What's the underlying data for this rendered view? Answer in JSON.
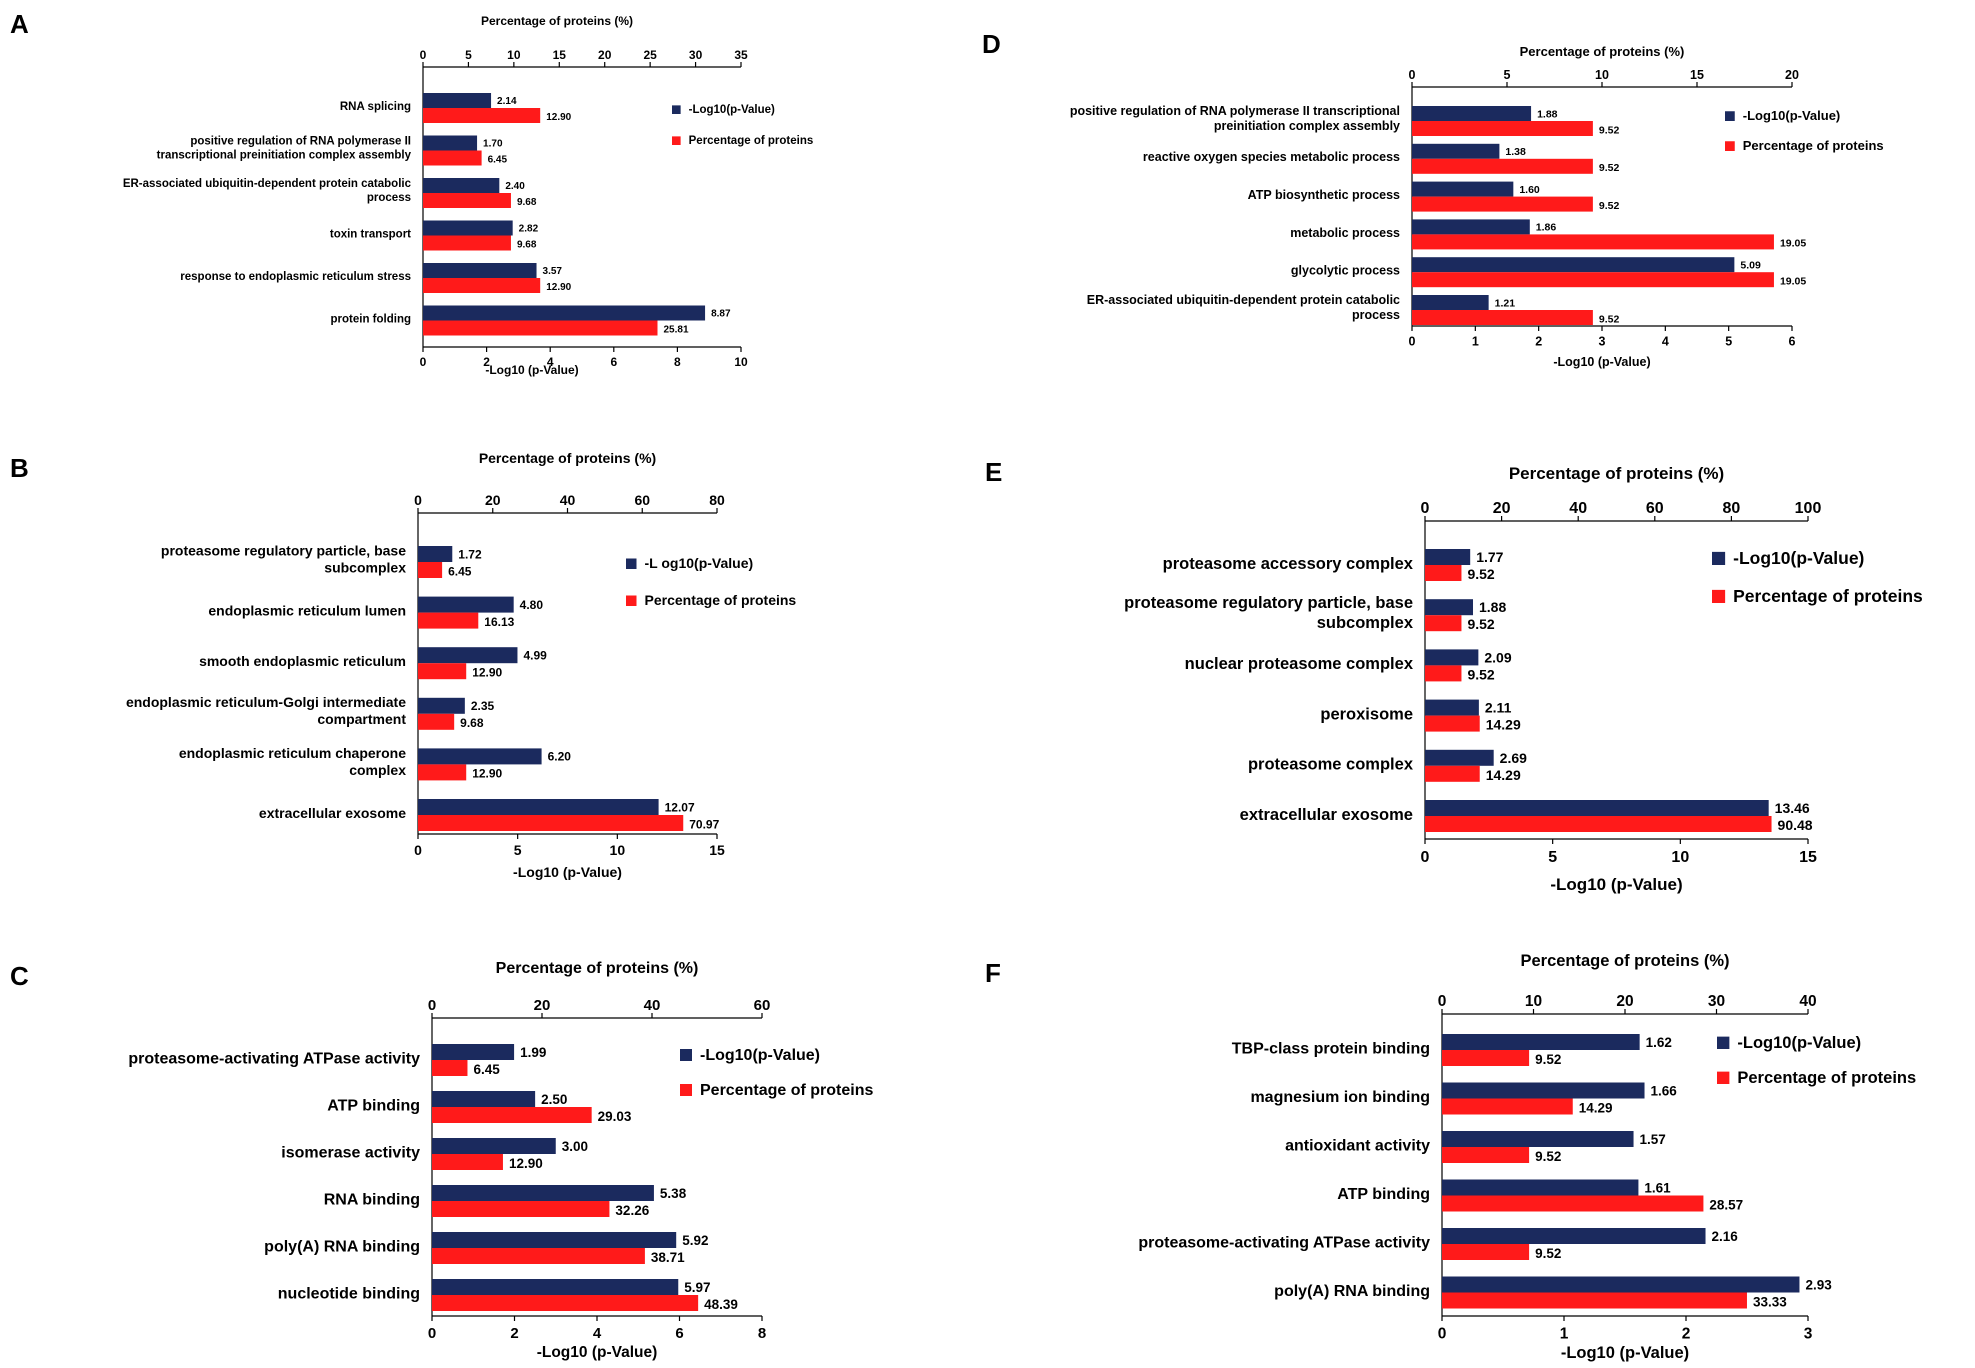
{
  "figure": {
    "colors": {
      "neglog": "#1b2a5e",
      "pct": "#ff1a1a",
      "axis": "#000000"
    },
    "legend_labels": [
      "-Log10(p-Value)",
      "Percentage of proteins"
    ]
  },
  "chart_data": [
    {
      "panel": "A",
      "type": "bar",
      "orientation": "horizontal",
      "title": "Percentage of proteins (%)",
      "xlabel": "-Log10 (p-Value)",
      "bottom_axis": {
        "range": [
          0,
          10
        ],
        "ticks": [
          0,
          2,
          4,
          6,
          8,
          10
        ]
      },
      "top_axis": {
        "range": [
          0,
          35
        ],
        "ticks": [
          0,
          5,
          10,
          15,
          20,
          25,
          30,
          35
        ]
      },
      "categories": [
        [
          "RNA splicing"
        ],
        [
          "positive regulation of RNA polymerase II",
          "transcriptional preinitiation complex assembly"
        ],
        [
          "ER-associated ubiquitin-dependent protein catabolic",
          "process"
        ],
        [
          "toxin transport"
        ],
        [
          "response to endoplasmic reticulum stress"
        ],
        [
          "protein folding"
        ]
      ],
      "series": [
        {
          "name": "-Log10(p-Value)",
          "axis": "bottom",
          "values": [
            2.14,
            1.7,
            2.4,
            2.82,
            3.57,
            8.87
          ],
          "labels": [
            "2.14",
            "1.70",
            "2.40",
            "2.82",
            "3.57",
            "8.87"
          ]
        },
        {
          "name": "Percentage of proteins",
          "axis": "top",
          "values": [
            12.9,
            6.45,
            9.68,
            9.68,
            12.9,
            25.81
          ],
          "labels": [
            "12.90",
            "6.45",
            "9.68",
            "9.68",
            "12.90",
            "25.81"
          ]
        }
      ],
      "legend": [
        "-Log10(p-Value)",
        "Percentage of proteins"
      ]
    },
    {
      "panel": "B",
      "type": "bar",
      "orientation": "horizontal",
      "title": "Percentage of proteins (%)",
      "xlabel": "-Log10 (p-Value)",
      "bottom_axis": {
        "range": [
          0,
          15
        ],
        "ticks": [
          0,
          5,
          10,
          15
        ]
      },
      "top_axis": {
        "range": [
          0,
          80
        ],
        "ticks": [
          0,
          20,
          40,
          60,
          80
        ]
      },
      "categories": [
        [
          "proteasome regulatory particle, base",
          "subcomplex"
        ],
        [
          "endoplasmic reticulum lumen"
        ],
        [
          "smooth endoplasmic reticulum"
        ],
        [
          "endoplasmic reticulum-Golgi intermediate",
          "compartment"
        ],
        [
          "endoplasmic reticulum chaperone",
          "complex"
        ],
        [
          "extracellular exosome"
        ]
      ],
      "series": [
        {
          "name": "-Log10(p-Value)",
          "axis": "bottom",
          "values": [
            1.72,
            4.8,
            4.99,
            2.35,
            6.2,
            12.07
          ],
          "labels": [
            "1.72",
            "4.80",
            "4.99",
            "2.35",
            "6.20",
            "12.07"
          ]
        },
        {
          "name": "Percentage of proteins",
          "axis": "top",
          "values": [
            6.45,
            16.13,
            12.9,
            9.68,
            12.9,
            70.97
          ],
          "labels": [
            "6.45",
            "16.13",
            "12.90",
            "9.68",
            "12.90",
            "70.97"
          ]
        }
      ],
      "legend": [
        "-L og10(p-Value)",
        "Percentage of proteins"
      ]
    },
    {
      "panel": "C",
      "type": "bar",
      "orientation": "horizontal",
      "title": "Percentage of proteins (%)",
      "xlabel": "-Log10 (p-Value)",
      "bottom_axis": {
        "range": [
          0,
          8
        ],
        "ticks": [
          0,
          2,
          4,
          6,
          8
        ]
      },
      "top_axis": {
        "range": [
          0,
          60
        ],
        "ticks": [
          0,
          20,
          40,
          60
        ]
      },
      "categories": [
        [
          "proteasome-activating ATPase activity"
        ],
        [
          "ATP binding"
        ],
        [
          "isomerase activity"
        ],
        [
          "RNA binding"
        ],
        [
          "poly(A) RNA binding"
        ],
        [
          "nucleotide binding"
        ]
      ],
      "series": [
        {
          "name": "-Log10(p-Value)",
          "axis": "bottom",
          "values": [
            1.99,
            2.5,
            3.0,
            5.38,
            5.92,
            5.97
          ],
          "labels": [
            "1.99",
            "2.50",
            "3.00",
            "5.38",
            "5.92",
            "5.97"
          ]
        },
        {
          "name": "Percentage of proteins",
          "axis": "top",
          "values": [
            6.45,
            29.03,
            12.9,
            32.26,
            38.71,
            48.39
          ],
          "labels": [
            "6.45",
            "29.03",
            "12.90",
            "32.26",
            "38.71",
            "48.39"
          ]
        }
      ],
      "legend": [
        "-Log10(p-Value)",
        "Percentage of proteins"
      ]
    },
    {
      "panel": "D",
      "type": "bar",
      "orientation": "horizontal",
      "title": "Percentage of proteins (%)",
      "xlabel": "-Log10 (p-Value)",
      "bottom_axis": {
        "range": [
          0,
          6
        ],
        "ticks": [
          0,
          1,
          2,
          3,
          4,
          5,
          6
        ]
      },
      "top_axis": {
        "range": [
          0,
          20
        ],
        "ticks": [
          0,
          5,
          10,
          15,
          20
        ]
      },
      "categories": [
        [
          "positive regulation of RNA polymerase II transcriptional",
          "preinitiation complex assembly"
        ],
        [
          "reactive oxygen species metabolic process"
        ],
        [
          "ATP biosynthetic process"
        ],
        [
          "metabolic process"
        ],
        [
          "glycolytic process"
        ],
        [
          "ER-associated ubiquitin-dependent protein catabolic",
          "process"
        ]
      ],
      "series": [
        {
          "name": "-Log10(p-Value)",
          "axis": "bottom",
          "values": [
            1.88,
            1.38,
            1.6,
            1.86,
            5.09,
            1.21
          ],
          "labels": [
            "1.88",
            "1.38",
            "1.60",
            "1.86",
            "5.09",
            "1.21"
          ]
        },
        {
          "name": "Percentage of proteins",
          "axis": "top",
          "values": [
            9.52,
            9.52,
            9.52,
            19.05,
            19.05,
            9.52
          ],
          "labels": [
            "9.52",
            "9.52",
            "9.52",
            "19.05",
            "19.05",
            "9.52"
          ]
        }
      ],
      "legend": [
        "-Log10(p-Value)",
        "Percentage of proteins"
      ]
    },
    {
      "panel": "E",
      "type": "bar",
      "orientation": "horizontal",
      "title": "Percentage of proteins (%)",
      "xlabel": "-Log10 (p-Value)",
      "bottom_axis": {
        "range": [
          0,
          15
        ],
        "ticks": [
          0,
          5,
          10,
          15
        ]
      },
      "top_axis": {
        "range": [
          0,
          100
        ],
        "ticks": [
          0,
          20,
          40,
          60,
          80,
          100
        ]
      },
      "categories": [
        [
          "proteasome accessory complex"
        ],
        [
          "proteasome regulatory particle, base",
          "subcomplex"
        ],
        [
          "nuclear proteasome complex"
        ],
        [
          "peroxisome"
        ],
        [
          "proteasome complex"
        ],
        [
          "extracellular exosome"
        ]
      ],
      "series": [
        {
          "name": "-Log10(p-Value)",
          "axis": "bottom",
          "values": [
            1.77,
            1.88,
            2.09,
            2.11,
            2.69,
            13.46
          ],
          "labels": [
            "1.77",
            "1.88",
            "2.09",
            "2.11",
            "2.69",
            "13.46"
          ]
        },
        {
          "name": "Percentage of proteins",
          "axis": "top",
          "values": [
            9.52,
            9.52,
            9.52,
            14.29,
            14.29,
            90.48
          ],
          "labels": [
            "9.52",
            "9.52",
            "9.52",
            "14.29",
            "14.29",
            "90.48"
          ]
        }
      ],
      "legend": [
        "-Log10(p-Value)",
        "Percentage of proteins"
      ]
    },
    {
      "panel": "F",
      "type": "bar",
      "orientation": "horizontal",
      "title": "Percentage of proteins (%)",
      "xlabel": "-Log10 (p-Value)",
      "bottom_axis": {
        "range": [
          0,
          3
        ],
        "ticks": [
          0,
          1,
          2,
          3
        ]
      },
      "top_axis": {
        "range": [
          0,
          40
        ],
        "ticks": [
          0,
          10,
          20,
          30,
          40
        ]
      },
      "categories": [
        [
          "TBP-class protein binding"
        ],
        [
          "magnesium ion binding"
        ],
        [
          "antioxidant activity"
        ],
        [
          "ATP binding"
        ],
        [
          "proteasome-activating ATPase activity"
        ],
        [
          "poly(A) RNA binding"
        ]
      ],
      "series": [
        {
          "name": "-Log10(p-Value)",
          "axis": "bottom",
          "values": [
            1.62,
            1.66,
            1.57,
            1.61,
            2.16,
            2.93
          ],
          "labels": [
            "1.62",
            "1.66",
            "1.57",
            "1.61",
            "2.16",
            "2.93"
          ]
        },
        {
          "name": "Percentage of proteins",
          "axis": "top",
          "values": [
            9.52,
            14.29,
            9.52,
            28.57,
            9.52,
            33.33
          ],
          "labels": [
            "9.52",
            "14.29",
            "9.52",
            "28.57",
            "9.52",
            "33.33"
          ]
        }
      ],
      "legend": [
        "-Log10(p-Value)",
        "Percentage of proteins"
      ]
    }
  ]
}
